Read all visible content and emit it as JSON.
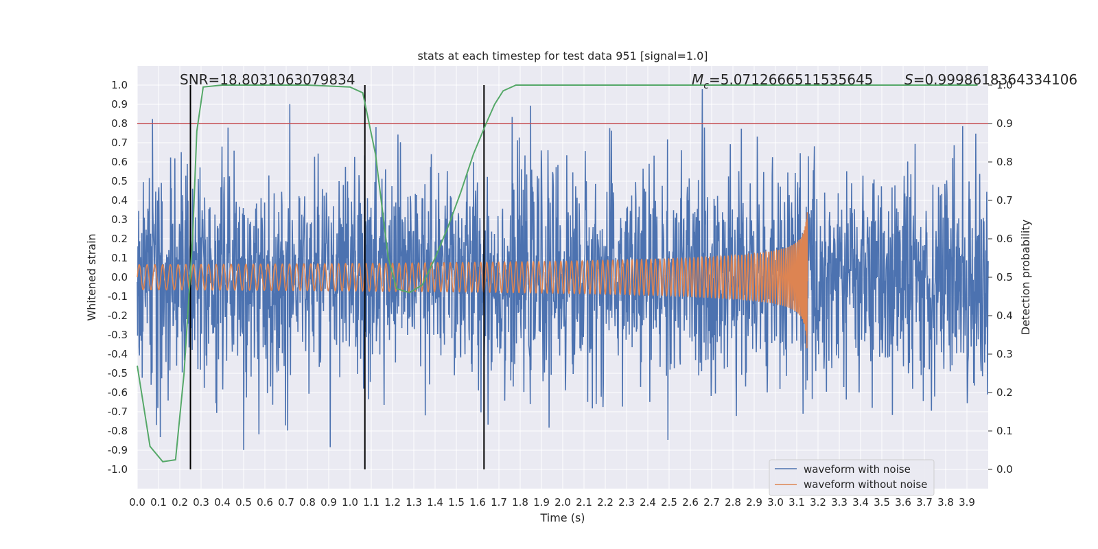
{
  "chart_data": {
    "type": "line",
    "title": "stats at each timestep for test data 951 [signal=1.0]",
    "xlabel": "Time (s)",
    "ylabel": "Whitened strain",
    "y2label": "Detection probability",
    "xlim": [
      0.0,
      4.0
    ],
    "ylim": [
      -1.1,
      1.1
    ],
    "y2lim": [
      -0.05,
      1.05
    ],
    "xticks": [
      "0.0",
      "0.1",
      "0.2",
      "0.3",
      "0.4",
      "0.5",
      "0.6",
      "0.7",
      "0.8",
      "0.9",
      "1.0",
      "1.1",
      "1.2",
      "1.3",
      "1.4",
      "1.5",
      "1.6",
      "1.7",
      "1.8",
      "1.9",
      "2.0",
      "2.1",
      "2.2",
      "2.3",
      "2.4",
      "2.5",
      "2.6",
      "2.7",
      "2.8",
      "2.9",
      "3.0",
      "3.1",
      "3.2",
      "3.3",
      "3.4",
      "3.5",
      "3.6",
      "3.7",
      "3.8",
      "3.9"
    ],
    "yticks": [
      "1.0",
      "0.9",
      "0.8",
      "0.7",
      "0.6",
      "0.5",
      "0.4",
      "0.3",
      "0.2",
      "0.1",
      "0.0",
      "-0.1",
      "-0.2",
      "-0.3",
      "-0.4",
      "-0.5",
      "-0.6",
      "-0.7",
      "-0.8",
      "-0.9",
      "-1.0"
    ],
    "y2ticks": [
      "1.0",
      "0.9",
      "0.8",
      "0.7",
      "0.6",
      "0.5",
      "0.4",
      "0.3",
      "0.2",
      "0.1",
      "0.0"
    ],
    "grid": true,
    "legend_position": "lower-right",
    "annotations": {
      "snr": "SNR=18.8031063079834",
      "mc_symbol": "M",
      "mc_sub": "c",
      "mc_value": "=5.0712666511535645",
      "s_symbol": "S",
      "s_value": "=0.9998618364334106"
    },
    "threshold_y2": 0.9,
    "vertical_lines_x": [
      0.25,
      1.07,
      1.63
    ],
    "series": [
      {
        "name": "waveform with noise",
        "color": "#4c72b0",
        "amplitude_envelope": 0.95
      },
      {
        "name": "waveform without noise",
        "color": "#dd8452",
        "merger_time": 3.15
      },
      {
        "color": "#55a868",
        "axis": "y2",
        "x": [
          0.0,
          0.02,
          0.06,
          0.12,
          0.18,
          0.22,
          0.26,
          0.28,
          0.31,
          0.4,
          0.6,
          0.8,
          1.0,
          1.06,
          1.12,
          1.18,
          1.22,
          1.28,
          1.34,
          1.4,
          1.46,
          1.52,
          1.58,
          1.64,
          1.68,
          1.72,
          1.78,
          1.9,
          2.5,
          3.0,
          3.5,
          3.95
        ],
        "y": [
          0.27,
          0.2,
          0.06,
          0.02,
          0.025,
          0.25,
          0.6,
          0.88,
          0.995,
          1.0,
          1.0,
          1.0,
          0.995,
          0.98,
          0.82,
          0.55,
          0.47,
          0.46,
          0.48,
          0.55,
          0.63,
          0.72,
          0.82,
          0.9,
          0.95,
          0.985,
          1.0,
          1.0,
          1.0,
          1.0,
          1.0,
          1.0
        ]
      }
    ],
    "colors": {
      "plot_bg": "#eaeaf2",
      "grid": "#ffffff",
      "threshold": "#c44e52",
      "vline": "#000000"
    }
  }
}
